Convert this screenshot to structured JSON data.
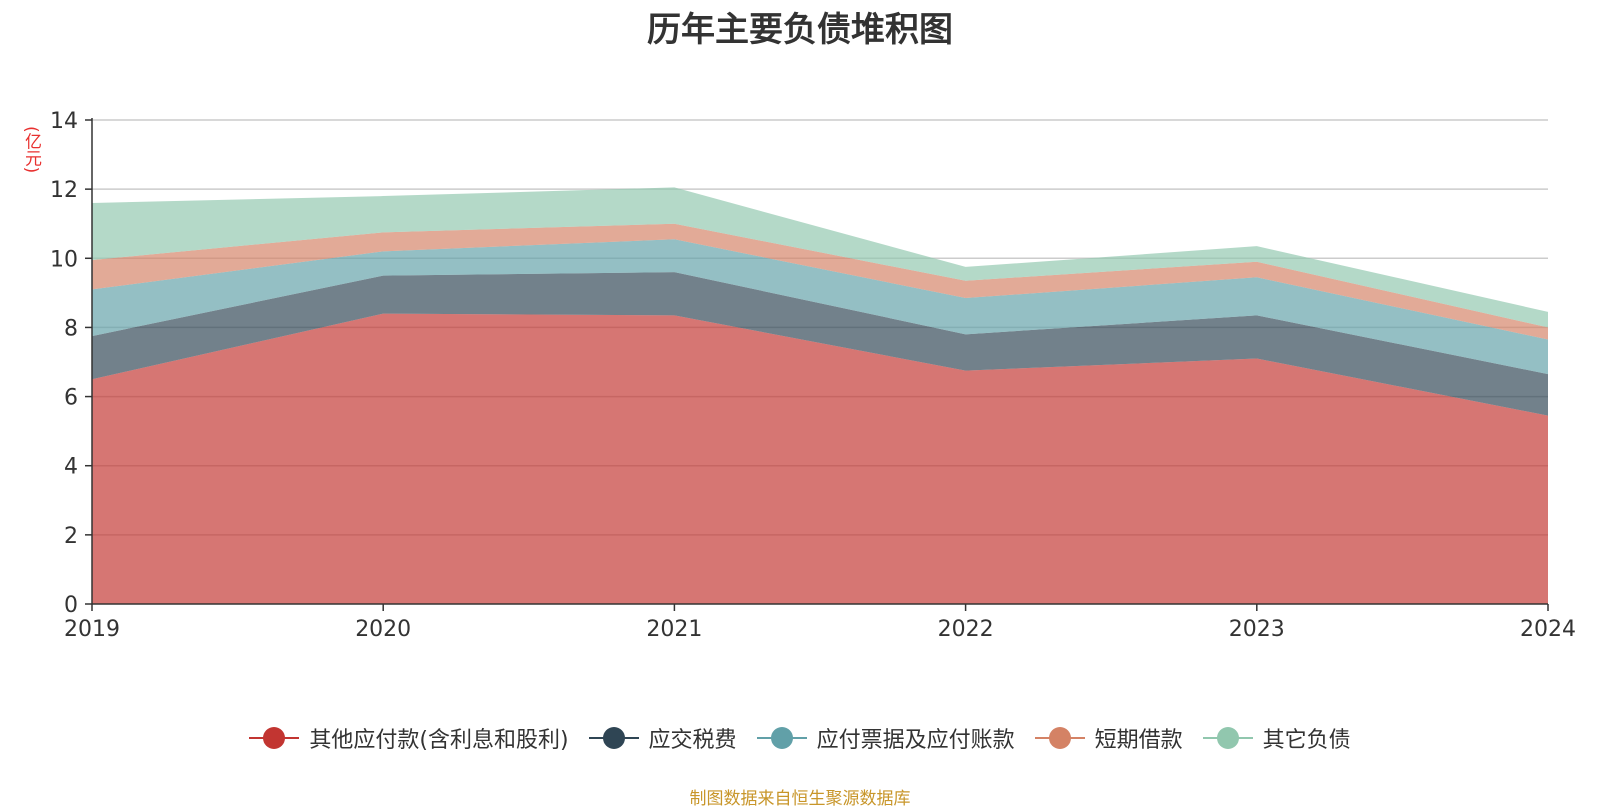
{
  "unit_label": "(亿元)",
  "legend_items": [
    {
      "label": "其他应付款(含利息和股利)",
      "color": "#c23531"
    },
    {
      "label": "应交税费",
      "color": "#2f4554"
    },
    {
      "label": "应付票据及应付账款",
      "color": "#61a0a8"
    },
    {
      "label": "短期借款",
      "color": "#d48265"
    },
    {
      "label": "其它负债",
      "color": "#91c7ae"
    }
  ],
  "source_note": "制图数据来自恒生聚源数据库",
  "chart_data": {
    "type": "area",
    "stacked": true,
    "title": "历年主要负债堆积图",
    "ylabel": "(亿元)",
    "x": [
      "2019",
      "2020",
      "2021",
      "2022",
      "2023",
      "2024"
    ],
    "ylim": [
      0,
      14
    ],
    "yticks": [
      0,
      2,
      4,
      6,
      8,
      10,
      12,
      14
    ],
    "grid": true,
    "legend_position": "bottom",
    "series": [
      {
        "name": "其他应付款(含利息和股利)",
        "color": "#c23531",
        "values": [
          6.5,
          8.4,
          8.35,
          6.75,
          7.1,
          5.45
        ]
      },
      {
        "name": "应交税费",
        "color": "#2f4554",
        "values": [
          1.25,
          1.1,
          1.25,
          1.05,
          1.25,
          1.2
        ]
      },
      {
        "name": "应付票据及应付账款",
        "color": "#61a0a8",
        "values": [
          1.35,
          0.7,
          0.95,
          1.05,
          1.1,
          1.0
        ]
      },
      {
        "name": "短期借款",
        "color": "#d48265",
        "values": [
          0.85,
          0.55,
          0.45,
          0.5,
          0.45,
          0.35
        ]
      },
      {
        "name": "其它负债",
        "color": "#91c7ae",
        "values": [
          1.65,
          1.05,
          1.05,
          0.4,
          0.45,
          0.45
        ]
      }
    ]
  }
}
